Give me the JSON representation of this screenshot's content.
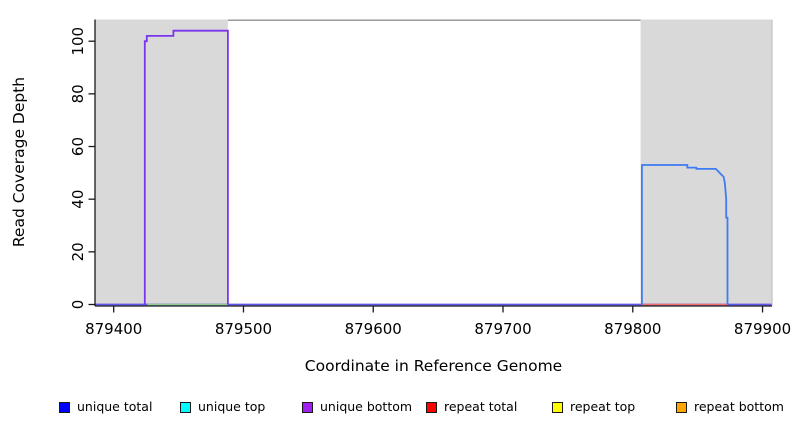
{
  "chart_data": {
    "type": "line",
    "title": "",
    "xlabel": "Coordinate in Reference Genome",
    "ylabel": "Read Coverage Depth",
    "xlim": [
      879386,
      879907
    ],
    "ylim": [
      0,
      108
    ],
    "x_ticks": [
      879400,
      879500,
      879600,
      879700,
      879800,
      879900
    ],
    "y_ticks": [
      0,
      20,
      40,
      60,
      80,
      100
    ],
    "grid": false,
    "legend_position": "bottom",
    "plot_bg": "#ffffff",
    "axis_color": "#1a1a1a",
    "shaded_regions": [
      {
        "name": "shaded-region-left",
        "x0": 879386,
        "x1": 879488,
        "color": "#d9d9d9"
      },
      {
        "name": "shaded-region-right",
        "x0": 879806,
        "x1": 879907,
        "color": "#d9d9d9"
      }
    ],
    "top_border_segment": {
      "x0": 879488,
      "x1": 879806,
      "color": "#909090"
    },
    "series": [
      {
        "name": "zero-baseline",
        "color": "#5e57ee",
        "width": 1.8,
        "points": [
          [
            879386,
            0
          ],
          [
            879907,
            0
          ]
        ]
      },
      {
        "name": "green-zero-left-region",
        "color": "#8fcd8f",
        "width": 1.6,
        "points": [
          [
            879426,
            0
          ],
          [
            879488,
            0
          ]
        ]
      },
      {
        "name": "repeat-total-zero-right-region",
        "color": "#f26a6a",
        "width": 1.6,
        "points": [
          [
            879807,
            0
          ],
          [
            879873,
            0
          ]
        ]
      },
      {
        "name": "unique-bottom-left-region",
        "color": "#7b35ec",
        "width": 1.8,
        "points": [
          [
            879424,
            0
          ],
          [
            879424,
            100
          ],
          [
            879425.5,
            100
          ],
          [
            879425.5,
            102
          ],
          [
            879446,
            102
          ],
          [
            879446,
            104
          ],
          [
            879488,
            104
          ],
          [
            879488,
            0
          ]
        ]
      },
      {
        "name": "unique-total-right-region",
        "color": "#3f7bf2",
        "width": 1.8,
        "points": [
          [
            879807,
            0
          ],
          [
            879807,
            53
          ],
          [
            879842,
            53
          ],
          [
            879842,
            52
          ],
          [
            879849,
            52
          ],
          [
            879849,
            51.5
          ],
          [
            879864,
            51.5
          ],
          [
            879866,
            50.5
          ],
          [
            879868,
            49.5
          ],
          [
            879870,
            48.5
          ],
          [
            879871,
            46
          ],
          [
            879872,
            40
          ],
          [
            879872,
            33
          ],
          [
            879873,
            33
          ],
          [
            879873,
            0
          ]
        ]
      }
    ],
    "legend": [
      {
        "label": "unique total",
        "color": "#0000ff"
      },
      {
        "label": "unique top",
        "color": "#00ffff"
      },
      {
        "label": "unique bottom",
        "color": "#a020f0"
      },
      {
        "label": "repeat total",
        "color": "#ff0000"
      },
      {
        "label": "repeat top",
        "color": "#ffff00"
      },
      {
        "label": "repeat bottom",
        "color": "#ffa500"
      }
    ]
  }
}
